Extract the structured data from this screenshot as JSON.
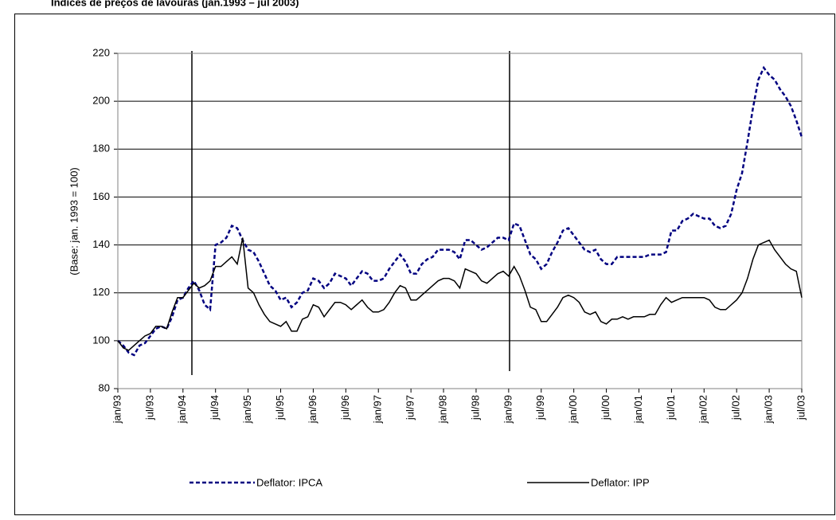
{
  "chart_data": {
    "type": "line",
    "title": "Índices de preços de lavouras (jan.1993 – jul 2003)",
    "y_label": "(Base: jan. 1993 = 100)",
    "categories": [
      "jan/93",
      null,
      null,
      null,
      null,
      null,
      "jul/93",
      null,
      null,
      null,
      null,
      null,
      "jan/94",
      null,
      null,
      null,
      null,
      null,
      "jul/94",
      null,
      null,
      null,
      null,
      null,
      "jan/95",
      null,
      null,
      null,
      null,
      null,
      "jul/95",
      null,
      null,
      null,
      null,
      null,
      "jan/96",
      null,
      null,
      null,
      null,
      null,
      "jul/96",
      null,
      null,
      null,
      null,
      null,
      "jan/97",
      null,
      null,
      null,
      null,
      null,
      "jul/97",
      null,
      null,
      null,
      null,
      null,
      "jan/98",
      null,
      null,
      null,
      null,
      null,
      "jul/98",
      null,
      null,
      null,
      null,
      null,
      "jan/99",
      null,
      null,
      null,
      null,
      null,
      "jul/99",
      null,
      null,
      null,
      null,
      null,
      "jan/00",
      null,
      null,
      null,
      null,
      null,
      "jul/00",
      null,
      null,
      null,
      null,
      null,
      "jan/01",
      null,
      null,
      null,
      null,
      null,
      "jul/01",
      null,
      null,
      null,
      null,
      null,
      "jan/02",
      null,
      null,
      null,
      null,
      null,
      "jul/02",
      null,
      null,
      null,
      null,
      null,
      "jan/03",
      null,
      null,
      null,
      null,
      null,
      "jul/03"
    ],
    "series": [
      {
        "name": "Deflator: IPCA",
        "color": "#000080",
        "dash": true,
        "values": [
          100,
          98,
          95,
          94,
          98,
          99,
          102,
          105,
          106,
          105,
          110,
          117,
          118,
          122,
          125,
          121,
          115,
          113,
          140,
          141,
          143,
          148,
          147,
          142,
          138,
          137,
          133,
          128,
          123,
          121,
          117,
          118,
          114,
          116,
          120,
          121,
          126,
          125,
          122,
          124,
          128,
          127,
          126,
          123,
          126,
          129,
          128,
          125,
          125,
          126,
          130,
          133,
          136,
          133,
          128,
          128,
          132,
          134,
          135,
          138,
          138,
          138,
          137,
          134,
          142,
          142,
          140,
          138,
          139,
          141,
          143,
          143,
          142,
          149,
          148,
          142,
          136,
          134,
          130,
          132,
          137,
          141,
          146,
          147,
          144,
          141,
          138,
          137,
          138,
          134,
          132,
          132,
          135,
          135,
          135,
          135,
          135,
          135,
          136,
          136,
          136,
          137,
          146,
          146,
          150,
          151,
          153,
          152,
          151,
          151,
          148,
          147,
          148,
          153,
          163,
          170,
          183,
          197,
          209,
          214,
          211,
          209,
          205,
          202,
          198,
          192,
          185
        ]
      },
      {
        "name": "Deflator: IPP",
        "color": "#000000",
        "dash": false,
        "values": [
          100,
          97,
          96,
          98,
          100,
          102,
          103,
          106,
          106,
          105,
          112,
          118,
          118,
          121,
          124,
          122,
          123,
          125,
          131,
          131,
          133,
          135,
          132,
          143,
          122,
          120,
          115,
          111,
          108,
          107,
          106,
          108,
          104,
          104,
          109,
          110,
          115,
          114,
          110,
          113,
          116,
          116,
          115,
          113,
          115,
          117,
          114,
          112,
          112,
          113,
          116,
          120,
          123,
          122,
          117,
          117,
          119,
          121,
          123,
          125,
          126,
          126,
          125,
          122,
          130,
          129,
          128,
          125,
          124,
          126,
          128,
          129,
          127,
          131,
          127,
          121,
          114,
          113,
          108,
          108,
          111,
          114,
          118,
          119,
          118,
          116,
          112,
          111,
          112,
          108,
          107,
          109,
          109,
          110,
          109,
          110,
          110,
          110,
          111,
          111,
          115,
          118,
          116,
          117,
          118,
          118,
          118,
          118,
          118,
          117,
          114,
          113,
          113,
          115,
          117,
          120,
          126,
          134,
          140,
          141,
          142,
          138,
          135,
          132,
          130,
          129,
          118
        ]
      }
    ],
    "ylim": [
      80,
      220
    ],
    "yticks": [
      80,
      100,
      120,
      140,
      160,
      180,
      200,
      220
    ],
    "grid": true,
    "legend": "bottom"
  }
}
